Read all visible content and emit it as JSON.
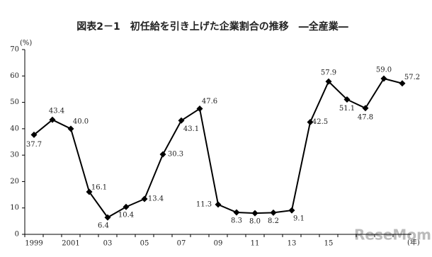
{
  "chart_data": {
    "type": "line",
    "title": "図表2－1　初任給を引き上げた企業割合の推移　―全産業―",
    "y_unit": "(%)",
    "x_unit": "(年)",
    "watermark": "ReseMom",
    "categories": [
      "1999",
      null,
      "2001",
      null,
      "03",
      null,
      "05",
      null,
      "07",
      null,
      "09",
      null,
      "11",
      null,
      "13",
      null,
      "15",
      null,
      null,
      null,
      null
    ],
    "series": [
      {
        "name": "初任給を引き上げた企業割合",
        "color": "#000000",
        "values": [
          37.7,
          43.4,
          40.0,
          16.1,
          6.4,
          10.4,
          13.4,
          30.3,
          43.1,
          47.6,
          11.3,
          8.3,
          8.0,
          8.2,
          9.1,
          42.5,
          57.9,
          51.1,
          47.8,
          59.0,
          57.2
        ],
        "value_labels": [
          "37.7",
          "43.4",
          "40.0",
          "16.1",
          "6.4",
          "10.4",
          "13.4",
          "30.3",
          "43.1",
          "47.6",
          "11.3",
          "8.3",
          "8.0",
          "8.2",
          "9.1",
          "42.5",
          "57.9",
          "51.1",
          "47.8",
          "59.0",
          "57.2"
        ]
      }
    ],
    "ylim": [
      0,
      70
    ],
    "yticks": [
      0,
      10,
      20,
      30,
      40,
      50,
      60,
      70
    ]
  }
}
